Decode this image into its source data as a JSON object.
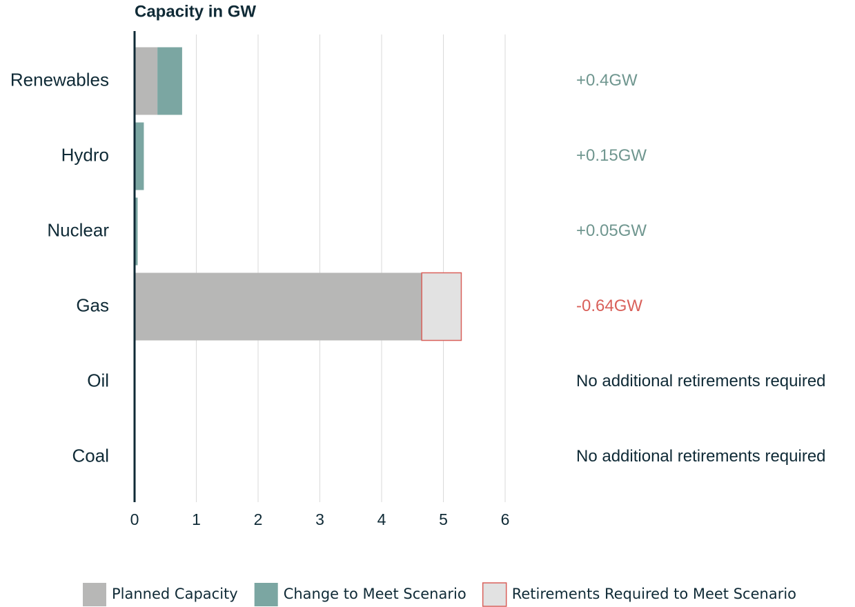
{
  "chart_data": {
    "type": "stacked_barh",
    "title": "Capacity in  GW",
    "categories": [
      "Renewables",
      "Hydro",
      "Nuclear",
      "Gas",
      "Oil",
      "Coal"
    ],
    "series": [
      {
        "name": "Planned Capacity",
        "color": "#b7b7b6",
        "values": [
          0.37,
          0,
          0,
          4.65,
          0,
          0
        ]
      },
      {
        "name": "Change to Meet Scenario",
        "color": "#7ba6a2",
        "values": [
          0.4,
          0.15,
          0.05,
          0,
          0,
          0
        ]
      },
      {
        "name": "Retirements Required to Meet Scenario",
        "color": "#e2e2e2",
        "edgecolor": "#d9605a",
        "values": [
          0,
          0,
          0,
          0.64,
          0,
          0
        ]
      }
    ],
    "annotations": [
      {
        "text": "+0.4GW",
        "color": "#6f968f"
      },
      {
        "text": "+0.15GW",
        "color": "#6f968f"
      },
      {
        "text": "+0.05GW",
        "color": "#6f968f"
      },
      {
        "text": "-0.64GW",
        "color": "#d9605a"
      },
      {
        "text": "No additional retirements required",
        "color": "#0f2a36"
      },
      {
        "text": "No additional retirements required",
        "color": "#0f2a36"
      }
    ],
    "xlim": [
      0,
      6
    ],
    "xticks": [
      0,
      1,
      2,
      3,
      4,
      5,
      6
    ],
    "grid": true
  }
}
